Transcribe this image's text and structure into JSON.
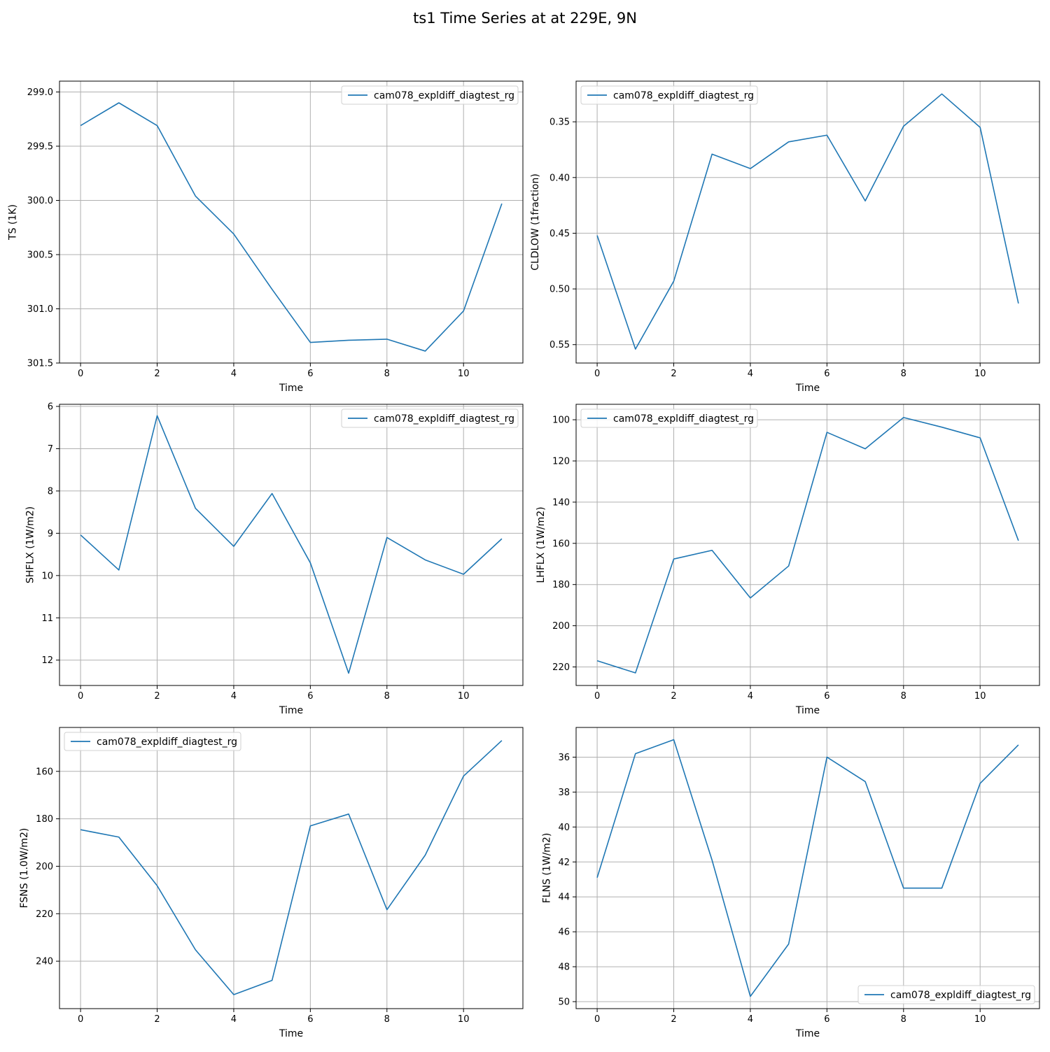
{
  "figure": {
    "title": "ts1 Time Series at at 229E, 9N"
  },
  "style": {
    "line_color": "#1f77b4",
    "grid_color": "#b0b0b0",
    "axis_color": "#000000"
  },
  "chart_data": [
    {
      "type": "line",
      "xlabel": "Time",
      "ylabel": "TS (1K)",
      "xlim": [
        -0.55,
        11.55
      ],
      "ylim": [
        298.9,
        301.5
      ],
      "y_inverted": true,
      "xticks": [
        0,
        2,
        4,
        6,
        8,
        10
      ],
      "yticks": [
        299.0,
        299.5,
        300.0,
        300.5,
        301.0,
        301.5
      ],
      "ytick_labels": [
        "299.0",
        "299.5",
        "300.0",
        "300.5",
        "301.0",
        "301.5"
      ],
      "grid": true,
      "legend_loc": "upper-right",
      "series": [
        {
          "name": "cam078_expldiff_diagtest_rg",
          "x": [
            0,
            1,
            2,
            3,
            4,
            5,
            6,
            7,
            8,
            9,
            10,
            11
          ],
          "values": [
            299.31,
            299.1,
            299.31,
            299.96,
            300.31,
            300.82,
            301.31,
            301.29,
            301.28,
            301.39,
            301.02,
            300.03
          ]
        }
      ]
    },
    {
      "type": "line",
      "xlabel": "Time",
      "ylabel": "CLDLOW (1fraction)",
      "xlim": [
        -0.55,
        11.55
      ],
      "ylim": [
        0.3135,
        0.5665
      ],
      "y_inverted": true,
      "xticks": [
        0,
        2,
        4,
        6,
        8,
        10
      ],
      "yticks": [
        0.35,
        0.4,
        0.45,
        0.5,
        0.55
      ],
      "ytick_labels": [
        "0.35",
        "0.40",
        "0.45",
        "0.50",
        "0.55"
      ],
      "grid": true,
      "legend_loc": "upper-left",
      "series": [
        {
          "name": "cam078_expldiff_diagtest_rg",
          "x": [
            0,
            1,
            2,
            3,
            4,
            5,
            6,
            7,
            8,
            9,
            10,
            11
          ],
          "values": [
            0.452,
            0.554,
            0.493,
            0.379,
            0.392,
            0.368,
            0.362,
            0.421,
            0.354,
            0.325,
            0.355,
            0.513
          ]
        }
      ]
    },
    {
      "type": "line",
      "xlabel": "Time",
      "ylabel": "SHFLX (1W/m2)",
      "xlim": [
        -0.55,
        11.55
      ],
      "ylim": [
        5.95,
        12.6
      ],
      "y_inverted": true,
      "xticks": [
        0,
        2,
        4,
        6,
        8,
        10
      ],
      "yticks": [
        6,
        7,
        8,
        9,
        10,
        11,
        12
      ],
      "ytick_labels": [
        "6",
        "7",
        "8",
        "9",
        "10",
        "11",
        "12"
      ],
      "grid": true,
      "legend_loc": "upper-right",
      "series": [
        {
          "name": "cam078_expldiff_diagtest_rg",
          "x": [
            0,
            1,
            2,
            3,
            4,
            5,
            6,
            7,
            8,
            9,
            10,
            11
          ],
          "values": [
            9.04,
            9.87,
            6.22,
            8.41,
            9.31,
            8.06,
            9.7,
            12.31,
            9.1,
            9.63,
            9.97,
            9.13
          ]
        }
      ]
    },
    {
      "type": "line",
      "xlabel": "Time",
      "ylabel": "LHFLX (1W/m2)",
      "xlim": [
        -0.55,
        11.55
      ],
      "ylim": [
        92.5,
        229.0
      ],
      "y_inverted": true,
      "xticks": [
        0,
        2,
        4,
        6,
        8,
        10
      ],
      "yticks": [
        100,
        120,
        140,
        160,
        180,
        200,
        220
      ],
      "ytick_labels": [
        "100",
        "120",
        "140",
        "160",
        "180",
        "200",
        "220"
      ],
      "grid": true,
      "legend_loc": "upper-left",
      "series": [
        {
          "name": "cam078_expldiff_diagtest_rg",
          "x": [
            0,
            1,
            2,
            3,
            4,
            5,
            6,
            7,
            8,
            9,
            10,
            11
          ],
          "values": [
            217.0,
            222.9,
            167.6,
            163.4,
            186.5,
            171.0,
            106.1,
            114.1,
            98.9,
            103.6,
            108.8,
            158.7
          ]
        }
      ]
    },
    {
      "type": "line",
      "xlabel": "Time",
      "ylabel": "FSNS (1.0W/m2)",
      "xlim": [
        -0.55,
        11.55
      ],
      "ylim": [
        141.5,
        260.0
      ],
      "y_inverted": true,
      "xticks": [
        0,
        2,
        4,
        6,
        8,
        10
      ],
      "yticks": [
        160,
        180,
        200,
        220,
        240
      ],
      "ytick_labels": [
        "160",
        "180",
        "200",
        "220",
        "240"
      ],
      "grid": true,
      "legend_loc": "upper-left",
      "series": [
        {
          "name": "cam078_expldiff_diagtest_rg",
          "x": [
            0,
            1,
            2,
            3,
            4,
            5,
            6,
            7,
            8,
            9,
            10,
            11
          ],
          "values": [
            184.6,
            187.7,
            208.2,
            235.2,
            254.1,
            248.1,
            183.0,
            178.0,
            218.3,
            195.3,
            162.0,
            147.0
          ]
        }
      ]
    },
    {
      "type": "line",
      "xlabel": "Time",
      "ylabel": "FLNS (1W/m2)",
      "xlim": [
        -0.55,
        11.55
      ],
      "ylim": [
        34.3,
        50.4
      ],
      "y_inverted": true,
      "xticks": [
        0,
        2,
        4,
        6,
        8,
        10
      ],
      "yticks": [
        36,
        38,
        40,
        42,
        44,
        46,
        48,
        50
      ],
      "ytick_labels": [
        "36",
        "38",
        "40",
        "42",
        "44",
        "46",
        "48",
        "50"
      ],
      "grid": true,
      "legend_loc": "lower-right",
      "series": [
        {
          "name": "cam078_expldiff_diagtest_rg",
          "x": [
            0,
            1,
            2,
            3,
            4,
            5,
            6,
            7,
            8,
            9,
            10,
            11
          ],
          "values": [
            42.9,
            35.8,
            35.0,
            41.9,
            49.7,
            46.7,
            36.0,
            37.4,
            43.5,
            43.5,
            37.5,
            35.3
          ]
        }
      ]
    }
  ]
}
